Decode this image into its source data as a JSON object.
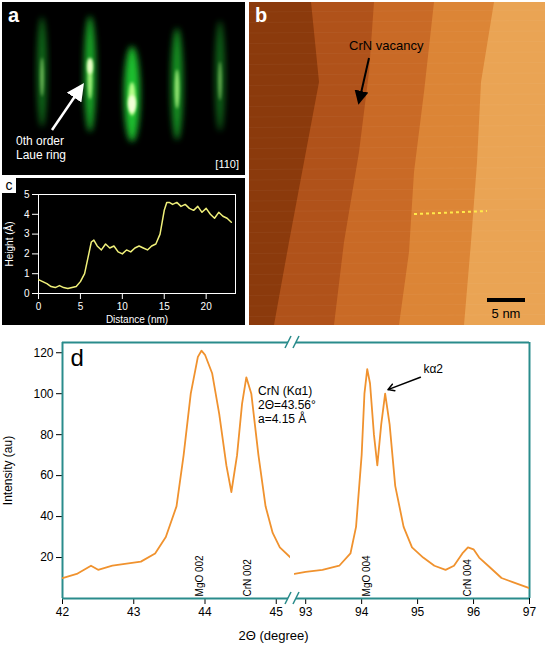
{
  "chart_data": [
    {
      "type": "image",
      "panel_label": "a",
      "annotations": [
        {
          "text": "0th order Laue ring"
        },
        {
          "text": "[110]"
        }
      ]
    },
    {
      "type": "image",
      "panel_label": "b",
      "annotations": [
        {
          "text": "CrN vacancy"
        }
      ],
      "scale_bar": "5 nm"
    },
    {
      "type": "line",
      "panel_label": "c",
      "color": "#f0f07a",
      "x_label": "Distance (nm)",
      "y_label": "Height (Å)",
      "x": [
        0,
        0.5,
        1,
        1.5,
        2,
        2.5,
        3,
        3.5,
        4,
        4.5,
        5,
        5.5,
        6,
        6.3,
        6.6,
        7,
        7.5,
        8,
        8.5,
        9,
        9.5,
        10,
        10.5,
        11,
        11.5,
        12,
        12.5,
        13,
        13.5,
        14,
        14.5,
        15,
        15.3,
        15.6,
        16,
        16.5,
        17,
        17.5,
        18,
        18.5,
        19,
        19.5,
        20,
        20.5,
        21,
        21.5,
        22,
        22.5,
        23
      ],
      "values": [
        0.7,
        0.6,
        0.5,
        0.35,
        0.3,
        0.4,
        0.3,
        0.25,
        0.3,
        0.35,
        0.6,
        1.0,
        2.0,
        2.6,
        2.7,
        2.4,
        2.2,
        2.5,
        2.3,
        2.4,
        2.1,
        2.0,
        2.2,
        2.1,
        2.3,
        2.4,
        2.3,
        2.2,
        2.4,
        2.5,
        3.0,
        4.2,
        4.6,
        4.6,
        4.5,
        4.6,
        4.4,
        4.5,
        4.3,
        4.2,
        4.4,
        4.1,
        4.3,
        4.0,
        3.8,
        4.1,
        3.9,
        3.8,
        3.6
      ],
      "xlim": [
        0,
        23.5
      ],
      "xticks": [
        0,
        5,
        10,
        15,
        20
      ],
      "ylim": [
        0,
        5
      ],
      "yticks": [
        0,
        1,
        2,
        3,
        4,
        5
      ]
    },
    {
      "type": "line",
      "panel_label": "d",
      "color": "#f0922e",
      "x_label": "2Θ (degree)",
      "y_label": "Intensity (au)",
      "x": [
        42,
        42.2,
        42.4,
        42.5,
        42.7,
        42.9,
        43.1,
        43.3,
        43.45,
        43.6,
        43.7,
        43.8,
        43.9,
        43.95,
        44.0,
        44.1,
        44.2,
        44.3,
        44.37,
        44.45,
        44.52,
        44.58,
        44.65,
        44.75,
        44.85,
        44.95,
        45.05,
        45.2,
        92.8,
        93.0,
        93.3,
        93.6,
        93.8,
        93.9,
        94.0,
        94.05,
        94.1,
        94.15,
        94.22,
        94.28,
        94.35,
        94.42,
        94.5,
        94.6,
        94.75,
        94.9,
        95.1,
        95.3,
        95.5,
        95.65,
        95.8,
        95.9,
        96.0,
        96.1,
        96.3,
        96.5,
        96.7,
        97.0
      ],
      "values": [
        10,
        12,
        16,
        14,
        16,
        17,
        18,
        22,
        30,
        45,
        70,
        100,
        118,
        121,
        119,
        110,
        90,
        65,
        52,
        70,
        95,
        108,
        100,
        70,
        45,
        32,
        25,
        20,
        12,
        13,
        14,
        16,
        22,
        35,
        70,
        100,
        112,
        105,
        80,
        65,
        85,
        100,
        85,
        55,
        35,
        25,
        20,
        16,
        14,
        16,
        22,
        25,
        24,
        20,
        15,
        10,
        8,
        5
      ],
      "xlim": [
        [
          42,
          45.2
        ],
        [
          92.8,
          97
        ]
      ],
      "xticks": [
        [
          42,
          43,
          44,
          45
        ],
        [
          93,
          94,
          95,
          96,
          97
        ]
      ],
      "ylim": [
        0,
        125
      ],
      "yticks": [
        20,
        40,
        60,
        80,
        100,
        120
      ],
      "peak_labels": [
        {
          "text": "MgO 002",
          "x": 43.93,
          "y": 1
        },
        {
          "text": "CrN 002",
          "x": 44.6,
          "y": 1
        },
        {
          "text": "MgO 004",
          "x": 94.1,
          "y": 1
        },
        {
          "text": "CrN 004",
          "x": 95.9,
          "y": 1
        }
      ],
      "annotations": [
        {
          "text": [
            "CrN (Kα1)",
            "2Θ=43.56°",
            "a=4.15 Å"
          ]
        },
        {
          "text": "kα2",
          "x": 95.05,
          "y": 112,
          "arrow_to": [
            94.47,
            102
          ]
        }
      ]
    }
  ]
}
